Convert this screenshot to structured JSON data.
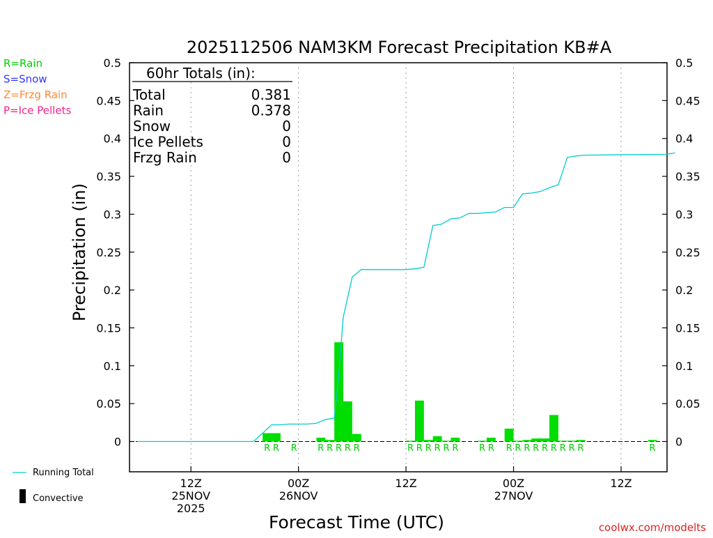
{
  "title": "2025112506 NAM3KM Forecast Precipitation KB#A",
  "ylabel": "Precipitation (in)",
  "xlabel": "Forecast Time (UTC)",
  "credit": "coolwx.com/modelts",
  "legend_ptype": [
    {
      "text": "R=Rain",
      "color": "#00cc00"
    },
    {
      "text": "S=Snow",
      "color": "#3333ff"
    },
    {
      "text": "Z=Frzg Rain",
      "color": "#ff8833"
    },
    {
      "text": "P=Ice Pellets",
      "color": "#ee2288"
    }
  ],
  "legend_bottom": {
    "running_total": "Running Total",
    "convective": "Convective",
    "running_color": "#00cccc",
    "convective_color": "#000000"
  },
  "totals": {
    "header": "60hr Totals (in):",
    "rows": [
      {
        "label": "Total",
        "value": "0.381"
      },
      {
        "label": "Rain",
        "value": "0.378"
      },
      {
        "label": "Snow",
        "value": "0"
      },
      {
        "label": "Ice Pellets",
        "value": "0"
      },
      {
        "label": "Frzg Rain",
        "value": "0"
      }
    ]
  },
  "chart_data": {
    "type": "bar",
    "title": "2025112506 NAM3KM Forecast Precipitation KB#A",
    "xlabel": "Forecast Time (UTC)",
    "ylabel": "Precipitation (in)",
    "ylim": [
      -0.04,
      0.5
    ],
    "yticks": [
      0,
      0.05,
      0.1,
      0.15,
      0.2,
      0.25,
      0.3,
      0.35,
      0.4,
      0.45,
      0.5
    ],
    "ytick_labels": [
      "0",
      "0.05",
      "0.1",
      "0.15",
      "0.2",
      "0.25",
      "0.3",
      "0.35",
      "0.4",
      "0.45",
      "0.5"
    ],
    "xlim_hours": [
      0,
      60
    ],
    "xticks": [
      {
        "hour": 6,
        "label": [
          "12Z",
          "25NOV",
          "2025"
        ]
      },
      {
        "hour": 18,
        "label": [
          "00Z",
          "26NOV"
        ]
      },
      {
        "hour": 30,
        "label": [
          "12Z"
        ]
      },
      {
        "hour": 42,
        "label": [
          "00Z",
          "27NOV"
        ]
      },
      {
        "hour": 54,
        "label": [
          "12Z"
        ]
      }
    ],
    "bar_color": "#00dd00",
    "bars": [
      {
        "hour": 15,
        "value": 0.011,
        "ptype": "R"
      },
      {
        "hour": 16,
        "value": 0.011,
        "ptype": "R"
      },
      {
        "hour": 18,
        "value": 0.0,
        "ptype": "R"
      },
      {
        "hour": 21,
        "value": 0.005,
        "ptype": "R"
      },
      {
        "hour": 22,
        "value": 0.002,
        "ptype": "R"
      },
      {
        "hour": 23,
        "value": 0.131,
        "ptype": "R"
      },
      {
        "hour": 24,
        "value": 0.053,
        "ptype": "R"
      },
      {
        "hour": 25,
        "value": 0.01,
        "ptype": "R"
      },
      {
        "hour": 31,
        "value": 0.001,
        "ptype": "R"
      },
      {
        "hour": 32,
        "value": 0.054,
        "ptype": "R"
      },
      {
        "hour": 33,
        "value": 0.002,
        "ptype": "R"
      },
      {
        "hour": 34,
        "value": 0.007,
        "ptype": "R"
      },
      {
        "hour": 35,
        "value": 0.001,
        "ptype": "R"
      },
      {
        "hour": 36,
        "value": 0.005,
        "ptype": "R"
      },
      {
        "hour": 39,
        "value": 0.001,
        "ptype": "R"
      },
      {
        "hour": 40,
        "value": 0.005,
        "ptype": "R"
      },
      {
        "hour": 42,
        "value": 0.017,
        "ptype": "R"
      },
      {
        "hour": 43,
        "value": 0.001,
        "ptype": "R"
      },
      {
        "hour": 44,
        "value": 0.002,
        "ptype": "R"
      },
      {
        "hour": 45,
        "value": 0.004,
        "ptype": "R"
      },
      {
        "hour": 46,
        "value": 0.004,
        "ptype": "R"
      },
      {
        "hour": 47,
        "value": 0.035,
        "ptype": "R"
      },
      {
        "hour": 48,
        "value": 0.001,
        "ptype": "R"
      },
      {
        "hour": 49,
        "value": 0.001,
        "ptype": "R"
      },
      {
        "hour": 50,
        "value": 0.002,
        "ptype": "R"
      },
      {
        "hour": 58,
        "value": 0.002,
        "ptype": "R"
      }
    ],
    "running_total": {
      "name": "Running Total",
      "x": [
        0,
        13,
        14,
        15,
        16,
        17,
        18,
        19,
        20,
        21,
        22,
        22.5,
        23,
        24,
        25,
        26,
        30,
        31,
        32,
        33,
        34,
        35,
        36,
        37,
        38,
        39,
        40,
        41,
        42,
        43,
        44,
        45,
        46,
        47,
        48,
        49,
        50,
        58,
        59,
        60
      ],
      "y": [
        0,
        0,
        0.011,
        0.022,
        0.022,
        0.023,
        0.023,
        0.023,
        0.024,
        0.029,
        0.031,
        0.09,
        0.164,
        0.217,
        0.227,
        0.227,
        0.227,
        0.228,
        0.23,
        0.285,
        0.287,
        0.294,
        0.295,
        0.301,
        0.301,
        0.302,
        0.303,
        0.309,
        0.309,
        0.327,
        0.328,
        0.33,
        0.335,
        0.339,
        0.375,
        0.377,
        0.378,
        0.379,
        0.379,
        0.381
      ]
    }
  }
}
